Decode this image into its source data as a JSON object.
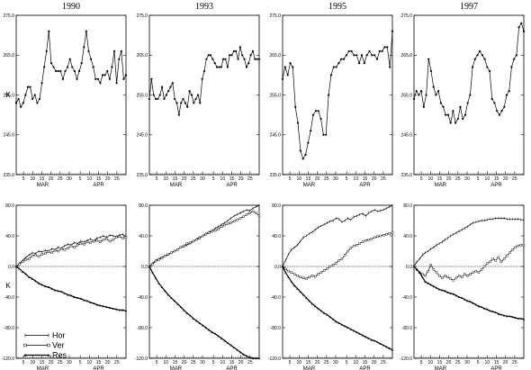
{
  "figure": {
    "ylabel_temp": "K",
    "ylabel_flux": "K"
  },
  "chart_data": [
    {
      "type": "line",
      "panel": "temp-1990",
      "title": "1990",
      "ylim": [
        235,
        275
      ],
      "yticks": [
        235,
        245,
        255,
        265,
        275
      ],
      "xticks": [
        "5",
        "10",
        "15",
        "20",
        "25",
        "30",
        "5",
        "10",
        "15",
        "20",
        "25"
      ],
      "months": [
        "MAR",
        "APR"
      ],
      "series": [
        {
          "values": [
            253,
            254,
            252,
            253,
            255,
            257,
            257,
            254,
            255,
            253,
            254,
            258,
            262,
            266,
            271,
            263,
            262,
            261,
            261,
            261,
            259,
            261,
            262,
            264,
            262,
            261,
            259,
            261,
            263,
            267,
            271,
            266,
            264,
            262,
            259,
            259,
            258,
            260,
            260,
            261,
            259,
            262,
            266,
            258,
            264,
            266,
            259,
            260
          ]
        }
      ]
    },
    {
      "type": "line",
      "panel": "temp-1993",
      "title": "1993",
      "ylim": [
        235,
        275
      ],
      "yticks": [
        235,
        245,
        255,
        265,
        275
      ],
      "xticks": [
        "5",
        "10",
        "15",
        "20",
        "25",
        "30",
        "5",
        "10",
        "15",
        "20",
        "25"
      ],
      "months": [
        "MAR",
        "APR"
      ],
      "series": [
        {
          "values": [
            254,
            259,
            255,
            254,
            254,
            255,
            257,
            254,
            255,
            256,
            257,
            258,
            254,
            253,
            250,
            253,
            254,
            253,
            252,
            256,
            255,
            253,
            254,
            255,
            253,
            259,
            261,
            264,
            265,
            265,
            264,
            263,
            262,
            262,
            262,
            264,
            264,
            262,
            265,
            265,
            266,
            266,
            264,
            267,
            265,
            264,
            262,
            263,
            265,
            266,
            264,
            264,
            264
          ]
        }
      ]
    },
    {
      "type": "line",
      "panel": "temp-1995",
      "title": "1995",
      "ylim": [
        235,
        275
      ],
      "yticks": [
        235,
        245,
        255,
        265,
        275
      ],
      "xticks": [
        "5",
        "10",
        "15",
        "20",
        "25",
        "30",
        "5",
        "10",
        "15",
        "20",
        "25"
      ],
      "months": [
        "MAR",
        "APR"
      ],
      "series": [
        {
          "values": [
            259,
            262,
            260,
            263,
            262,
            252,
            248,
            241,
            239,
            240,
            243,
            246,
            250,
            251,
            251,
            249,
            245,
            245,
            255,
            260,
            262,
            262,
            263,
            264,
            264,
            265,
            266,
            266,
            265,
            265,
            263,
            265,
            263,
            265,
            266,
            265,
            265,
            264,
            266,
            266,
            267,
            267,
            262,
            271
          ]
        }
      ]
    },
    {
      "type": "line",
      "panel": "temp-1997",
      "title": "1997",
      "ylim": [
        235,
        275
      ],
      "yticks": [
        235,
        245,
        255,
        265,
        275
      ],
      "xticks": [
        "5",
        "10",
        "15",
        "20",
        "25",
        "30",
        "5",
        "10",
        "15",
        "20",
        "25"
      ],
      "months": [
        "MAR",
        "APR"
      ],
      "series": [
        {
          "values": [
            254,
            256,
            255,
            256,
            252,
            255,
            264,
            261,
            257,
            255,
            256,
            253,
            252,
            250,
            250,
            248,
            251,
            248,
            249,
            252,
            249,
            250,
            253,
            255,
            262,
            264,
            265,
            266,
            265,
            264,
            262,
            261,
            254,
            253,
            251,
            250,
            251,
            252,
            255,
            256,
            262,
            264,
            265,
            272,
            273,
            271
          ]
        }
      ]
    },
    {
      "type": "line",
      "panel": "flux-1990",
      "ylim": [
        -120,
        80
      ],
      "yticks": [
        -120,
        -80,
        -40,
        0,
        40,
        80
      ],
      "xticks": [
        "5",
        "10",
        "15",
        "20",
        "25",
        "30",
        "5",
        "10",
        "15",
        "20",
        "25"
      ],
      "months": [
        "MAR",
        "APR"
      ],
      "series": [
        {
          "name": "Hor",
          "values": [
            0,
            4,
            8,
            12,
            15,
            18,
            17,
            20,
            19,
            21,
            20,
            23,
            22,
            25,
            24,
            27,
            29,
            28,
            31,
            30,
            33,
            32,
            34,
            36,
            33,
            37,
            38,
            40,
            38,
            41,
            40,
            39,
            41,
            42,
            38
          ]
        },
        {
          "name": "Ver",
          "values": [
            0,
            3,
            6,
            9,
            10,
            14,
            15,
            13,
            16,
            17,
            19,
            18,
            21,
            20,
            23,
            22,
            24,
            27,
            25,
            28,
            30,
            29,
            32,
            31,
            33,
            34,
            32,
            35,
            36,
            33,
            35,
            38,
            39,
            37,
            38
          ]
        },
        {
          "name": "Res",
          "values": [
            0,
            -3,
            -7,
            -10,
            -14,
            -16,
            -19,
            -22,
            -24,
            -26,
            -27,
            -29,
            -31,
            -32,
            -33,
            -35,
            -37,
            -38,
            -40,
            -41,
            -42,
            -44,
            -45,
            -47,
            -48,
            -50,
            -51,
            -52,
            -53,
            -54,
            -55,
            -56,
            -57,
            -57,
            -58
          ]
        }
      ],
      "legend": {
        "entries": [
          "Hor",
          "Ver",
          "Res"
        ],
        "placement": "bottom-left"
      }
    },
    {
      "type": "line",
      "panel": "flux-1993",
      "ylim": [
        -120,
        80
      ],
      "yticks": [
        -120,
        -80,
        -40,
        0,
        40,
        80
      ],
      "xticks": [
        "5",
        "10",
        "15",
        "20",
        "25",
        "30",
        "5",
        "10",
        "15",
        "20",
        "25"
      ],
      "months": [
        "MAR",
        "APR"
      ],
      "series": [
        {
          "name": "Hor",
          "values": [
            0,
            4,
            8,
            10,
            12,
            14,
            15,
            18,
            20,
            22,
            25,
            26,
            28,
            30,
            33,
            36,
            38,
            40,
            43,
            45,
            47,
            50,
            52,
            55,
            57,
            60,
            63,
            66,
            68,
            70,
            72,
            74,
            73,
            76,
            78,
            80
          ]
        },
        {
          "name": "Ver",
          "values": [
            0,
            3,
            7,
            9,
            11,
            14,
            16,
            18,
            20,
            22,
            25,
            27,
            30,
            31,
            33,
            35,
            37,
            40,
            42,
            44,
            46,
            47,
            49,
            52,
            54,
            56,
            57,
            59,
            61,
            63,
            65,
            68,
            70,
            72,
            70,
            66
          ]
        },
        {
          "name": "Res",
          "values": [
            0,
            -8,
            -15,
            -22,
            -27,
            -32,
            -37,
            -41,
            -45,
            -49,
            -53,
            -57,
            -61,
            -64,
            -68,
            -71,
            -74,
            -77,
            -80,
            -83,
            -86,
            -88,
            -91,
            -94,
            -97,
            -100,
            -103,
            -106,
            -109,
            -112,
            -115,
            -117,
            -119,
            -120,
            -120,
            -120
          ]
        }
      ]
    },
    {
      "type": "line",
      "panel": "flux-1995",
      "ylim": [
        -120,
        80
      ],
      "yticks": [
        -120,
        -80,
        -40,
        0,
        40,
        80
      ],
      "xticks": [
        "5",
        "10",
        "15",
        "20",
        "25",
        "30",
        "5",
        "10",
        "15",
        "20",
        "25"
      ],
      "months": [
        "MAR",
        "APR"
      ],
      "series": [
        {
          "name": "Hor",
          "values": [
            0,
            8,
            16,
            22,
            25,
            28,
            33,
            38,
            40,
            43,
            45,
            48,
            51,
            53,
            55,
            57,
            59,
            60,
            63,
            62,
            58,
            60,
            63,
            61,
            65,
            66,
            68,
            69,
            66,
            70,
            72,
            74,
            72,
            73,
            74,
            76,
            78,
            80
          ]
        },
        {
          "name": "Ver",
          "values": [
            0,
            -3,
            -6,
            -8,
            -10,
            -12,
            -14,
            -15,
            -16,
            -14,
            -12,
            -13,
            -10,
            -8,
            -5,
            -3,
            0,
            2,
            4,
            8,
            10,
            15,
            20,
            24,
            27,
            28,
            30,
            32,
            34,
            35,
            36,
            38,
            39,
            40,
            41,
            42,
            43,
            44
          ]
        },
        {
          "name": "Res",
          "values": [
            0,
            -8,
            -14,
            -20,
            -25,
            -29,
            -33,
            -37,
            -41,
            -45,
            -49,
            -52,
            -55,
            -58,
            -61,
            -63,
            -66,
            -69,
            -72,
            -74,
            -76,
            -78,
            -80,
            -82,
            -84,
            -86,
            -88,
            -90,
            -92,
            -94,
            -96,
            -97,
            -99,
            -101,
            -103,
            -105,
            -107,
            -109
          ]
        }
      ]
    },
    {
      "type": "line",
      "panel": "flux-1997",
      "ylim": [
        -120,
        80
      ],
      "yticks": [
        -120,
        -80,
        -40,
        0,
        40,
        80
      ],
      "xticks": [
        "5",
        "10",
        "15",
        "20",
        "25",
        "30",
        "5",
        "10",
        "15",
        "20",
        "25"
      ],
      "months": [
        "MAR",
        "APR"
      ],
      "series": [
        {
          "name": "Hor",
          "values": [
            0,
            6,
            10,
            15,
            18,
            20,
            23,
            25,
            28,
            30,
            32,
            35,
            37,
            40,
            42,
            44,
            46,
            48,
            50,
            52,
            55,
            57,
            58,
            59,
            60,
            60,
            61,
            62,
            62,
            63,
            63,
            63,
            63,
            62,
            62,
            62,
            62,
            62,
            61,
            61
          ]
        },
        {
          "name": "Ver",
          "values": [
            0,
            -4,
            -8,
            -10,
            -12,
            -6,
            2,
            -4,
            -8,
            -12,
            -15,
            -12,
            -14,
            -16,
            -18,
            -15,
            -12,
            -14,
            -10,
            -12,
            -10,
            -8,
            -6,
            -8,
            -4,
            0,
            4,
            6,
            10,
            8,
            12,
            6,
            10,
            14,
            18,
            22,
            25,
            27,
            28,
            28
          ]
        },
        {
          "name": "Res",
          "values": [
            0,
            -4,
            -8,
            -14,
            -20,
            -22,
            -24,
            -26,
            -28,
            -30,
            -31,
            -32,
            -34,
            -35,
            -36,
            -38,
            -40,
            -41,
            -43,
            -45,
            -46,
            -48,
            -50,
            -52,
            -53,
            -55,
            -56,
            -58,
            -59,
            -60,
            -62,
            -63,
            -64,
            -65,
            -65,
            -66,
            -67,
            -68,
            -68,
            -69
          ]
        }
      ]
    }
  ]
}
